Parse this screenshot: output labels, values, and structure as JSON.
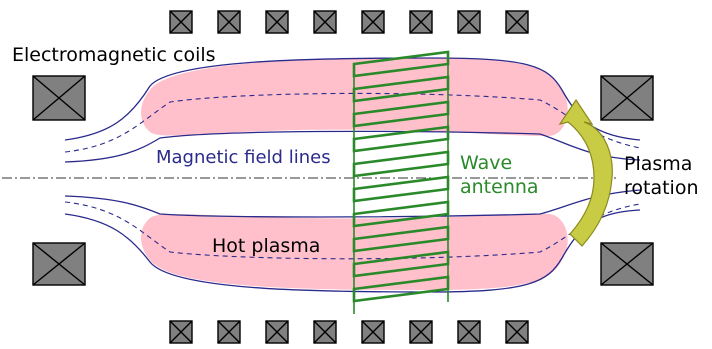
{
  "labels": {
    "coils": "Electromagnetic coils",
    "field_lines": "Magnetic field lines",
    "wave_line1": "Wave",
    "wave_line2": "antenna",
    "rotation_line1": "Plasma",
    "rotation_line2": "rotation",
    "plasma": "Hot plasma"
  },
  "colors": {
    "plasma": "#ffc0cb",
    "field": "#2a2a8c",
    "antenna": "#2a8a2a",
    "coil_fill": "#808080",
    "arrow_fill": "#c8cc44",
    "arrow_stroke": "#8a8a20"
  },
  "icons": {
    "coil": "crossed-box-icon",
    "rotation_arrow": "curved-arrow-icon"
  }
}
